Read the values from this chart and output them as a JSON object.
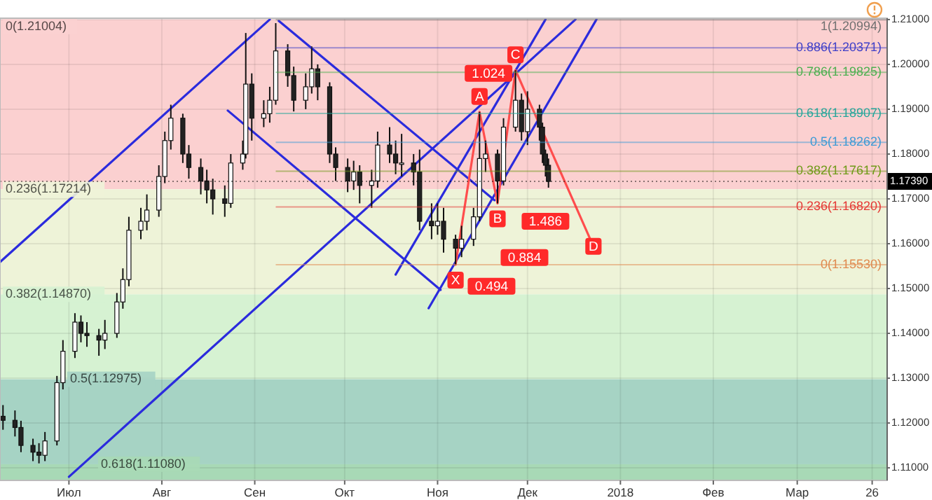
{
  "chart_data": {
    "type": "candlestick",
    "x": [
      "2017-06-09",
      "2017-06-13",
      "2017-06-15",
      "2017-06-19",
      "2017-06-21",
      "2017-06-23",
      "2017-06-27",
      "2017-06-29",
      "2017-07-03",
      "2017-07-05",
      "2017-07-07",
      "2017-07-11",
      "2017-07-13",
      "2017-07-17",
      "2017-07-19",
      "2017-07-21",
      "2017-07-25",
      "2017-07-27",
      "2017-07-31",
      "2017-08-02",
      "2017-08-04",
      "2017-08-08",
      "2017-08-10",
      "2017-08-14",
      "2017-08-16",
      "2017-08-18",
      "2017-08-22",
      "2017-08-24",
      "2017-08-28",
      "2017-08-29",
      "2017-08-31",
      "2017-09-04",
      "2017-09-06",
      "2017-09-08",
      "2017-09-12",
      "2017-09-14",
      "2017-09-18",
      "2017-09-20",
      "2017-09-22",
      "2017-09-26",
      "2017-09-28",
      "2017-10-02",
      "2017-10-04",
      "2017-10-06",
      "2017-10-10",
      "2017-10-12",
      "2017-10-16",
      "2017-10-18",
      "2017-10-20",
      "2017-10-24",
      "2017-10-26",
      "2017-10-30",
      "2017-11-01",
      "2017-11-03",
      "2017-11-07",
      "2017-11-09",
      "2017-11-13",
      "2017-11-15",
      "2017-11-17",
      "2017-11-21",
      "2017-11-23",
      "2017-11-27",
      "2017-11-29",
      "2017-12-01",
      "2017-12-05",
      "2017-12-06",
      "2017-12-07",
      "2017-12-08"
    ],
    "ohlc": [
      [
        1.1215,
        1.124,
        1.1185,
        1.1206
      ],
      [
        1.1206,
        1.1228,
        1.117,
        1.119
      ],
      [
        1.119,
        1.1205,
        1.1135,
        1.115
      ],
      [
        1.115,
        1.1165,
        1.1115,
        1.1135
      ],
      [
        1.1135,
        1.1155,
        1.111,
        1.1128
      ],
      [
        1.1128,
        1.118,
        1.1115,
        1.116
      ],
      [
        1.116,
        1.1305,
        1.115,
        1.129
      ],
      [
        1.129,
        1.1385,
        1.1275,
        1.136
      ],
      [
        1.136,
        1.1445,
        1.1345,
        1.1425
      ],
      [
        1.1425,
        1.144,
        1.138,
        1.14
      ],
      [
        1.14,
        1.1425,
        1.137,
        1.1395
      ],
      [
        1.1395,
        1.141,
        1.135,
        1.1385
      ],
      [
        1.1385,
        1.143,
        1.1365,
        1.14
      ],
      [
        1.14,
        1.149,
        1.139,
        1.147
      ],
      [
        1.147,
        1.1545,
        1.1455,
        1.152
      ],
      [
        1.152,
        1.166,
        1.1505,
        1.163
      ],
      [
        1.163,
        1.168,
        1.161,
        1.165
      ],
      [
        1.165,
        1.171,
        1.163,
        1.1675
      ],
      [
        1.1675,
        1.1775,
        1.166,
        1.175
      ],
      [
        1.175,
        1.185,
        1.1735,
        1.183
      ],
      [
        1.183,
        1.191,
        1.181,
        1.188
      ],
      [
        1.188,
        1.189,
        1.178,
        1.18
      ],
      [
        1.18,
        1.182,
        1.1745,
        1.177
      ],
      [
        1.177,
        1.179,
        1.171,
        1.174
      ],
      [
        1.174,
        1.1765,
        1.169,
        1.172
      ],
      [
        1.172,
        1.1745,
        1.1665,
        1.17
      ],
      [
        1.17,
        1.173,
        1.166,
        1.169
      ],
      [
        1.169,
        1.18,
        1.168,
        1.178
      ],
      [
        1.178,
        1.183,
        1.1765,
        1.18
      ],
      [
        1.18,
        1.207,
        1.179,
        1.1956
      ],
      [
        1.1956,
        1.198,
        1.183,
        1.188
      ],
      [
        1.188,
        1.192,
        1.186,
        1.189
      ],
      [
        1.189,
        1.195,
        1.187,
        1.192
      ],
      [
        1.192,
        1.2092,
        1.191,
        1.203
      ],
      [
        1.203,
        1.2045,
        1.195,
        1.1975
      ],
      [
        1.1975,
        1.1995,
        1.1895,
        1.192
      ],
      [
        1.192,
        1.198,
        1.19,
        1.195
      ],
      [
        1.195,
        1.204,
        1.1935,
        1.199
      ],
      [
        1.199,
        1.2,
        1.192,
        1.195
      ],
      [
        1.195,
        1.196,
        1.178,
        1.18
      ],
      [
        1.18,
        1.1815,
        1.174,
        1.177
      ],
      [
        1.177,
        1.179,
        1.1715,
        1.174
      ],
      [
        1.174,
        1.1785,
        1.172,
        1.176
      ],
      [
        1.176,
        1.1775,
        1.169,
        1.173
      ],
      [
        1.173,
        1.1765,
        1.168,
        1.174
      ],
      [
        1.174,
        1.185,
        1.1725,
        1.182
      ],
      [
        1.182,
        1.186,
        1.178,
        1.18
      ],
      [
        1.18,
        1.183,
        1.1755,
        1.178
      ],
      [
        1.178,
        1.1845,
        1.175,
        1.178
      ],
      [
        1.178,
        1.18,
        1.173,
        1.176
      ],
      [
        1.176,
        1.181,
        1.163,
        1.165
      ],
      [
        1.165,
        1.169,
        1.161,
        1.164
      ],
      [
        1.164,
        1.169,
        1.162,
        1.165
      ],
      [
        1.165,
        1.168,
        1.158,
        1.161
      ],
      [
        1.161,
        1.162,
        1.1553,
        1.159
      ],
      [
        1.159,
        1.164,
        1.157,
        1.161
      ],
      [
        1.161,
        1.168,
        1.1595,
        1.166
      ],
      [
        1.166,
        1.1894,
        1.165,
        1.179
      ],
      [
        1.179,
        1.183,
        1.176,
        1.18
      ],
      [
        1.18,
        1.181,
        1.169,
        1.174
      ],
      [
        1.174,
        1.188,
        1.173,
        1.186
      ],
      [
        1.186,
        1.1987,
        1.185,
        1.192
      ],
      [
        1.192,
        1.1935,
        1.183,
        1.185
      ],
      [
        1.185,
        1.194,
        1.182,
        1.19
      ],
      [
        1.19,
        1.191,
        1.183,
        1.186
      ],
      [
        1.186,
        1.187,
        1.178,
        1.18
      ],
      [
        1.18,
        1.181,
        1.175,
        1.1775
      ],
      [
        1.1775,
        1.179,
        1.1725,
        1.1739
      ]
    ],
    "series": [
      {
        "type": "line",
        "color": "#2b2bdd",
        "x": [
          "2017-06-08",
          "2017-09-06"
        ],
        "values": [
          1.1559,
          1.21
        ]
      },
      {
        "type": "line",
        "color": "#2b2bdd",
        "x": [
          "2017-07-01",
          "2017-12-17"
        ],
        "values": [
          1.108,
          1.21
        ]
      },
      {
        "type": "line",
        "color": "#2b2bdd",
        "x": [
          "2017-10-18",
          "2017-12-07"
        ],
        "values": [
          1.1531,
          1.21
        ]
      },
      {
        "type": "line",
        "color": "#2b2bdd",
        "x": [
          "2017-10-29",
          "2017-12-24"
        ],
        "values": [
          1.1456,
          1.21
        ]
      },
      {
        "type": "line",
        "color": "#2b2bdd",
        "x": [
          "2017-09-09",
          "2017-11-20"
        ],
        "values": [
          1.2097,
          1.1697
        ]
      },
      {
        "type": "line",
        "color": "#2b2bdd",
        "x": [
          "2017-08-23",
          "2017-11-02"
        ],
        "values": [
          1.1897,
          1.1497
        ]
      },
      {
        "type": "line",
        "color": "#ff4d4d",
        "marker": "none",
        "x": [
          "2017-11-07",
          "2017-11-15",
          "2017-11-21",
          "2017-11-27",
          "2017-12-23"
        ],
        "values": [
          1.1553,
          1.1894,
          1.169,
          1.1987,
          1.1594
        ]
      }
    ],
    "xlim": [
      "2017-06-08",
      "2018-03-31"
    ],
    "xticks": [
      {
        "value": "2017-07-01",
        "label": "Июл"
      },
      {
        "value": "2017-08-01",
        "label": "Авг"
      },
      {
        "value": "2017-09-01",
        "label": "Сен"
      },
      {
        "value": "2017-10-01",
        "label": "Окт"
      },
      {
        "value": "2017-11-01",
        "label": "Ноя"
      },
      {
        "value": "2017-12-01",
        "label": "Дек"
      },
      {
        "value": "2018-01-01",
        "label": "2018"
      },
      {
        "value": "2018-02-01",
        "label": "Фев"
      },
      {
        "value": "2018-03-01",
        "label": "Мар"
      },
      {
        "value": "2018-03-26",
        "label": "26"
      }
    ],
    "ylim": [
      1.1072,
      1.2103
    ],
    "yticks": [
      {
        "value": 1.11,
        "label": "1.11000"
      },
      {
        "value": 1.12,
        "label": "1.12000"
      },
      {
        "value": 1.13,
        "label": "1.13000"
      },
      {
        "value": 1.14,
        "label": "1.14000"
      },
      {
        "value": 1.15,
        "label": "1.15000"
      },
      {
        "value": 1.16,
        "label": "1.16000"
      },
      {
        "value": 1.17,
        "label": "1.17000"
      },
      {
        "value": 1.18,
        "label": "1.18000"
      },
      {
        "value": 1.19,
        "label": "1.19000"
      },
      {
        "value": 1.2,
        "label": "1.20000"
      },
      {
        "value": 1.21,
        "label": "1.21000"
      }
    ],
    "grid": true,
    "bands": [
      {
        "axis": "y",
        "from": 1.17214,
        "to": 1.21004,
        "label": "0(1.21004)",
        "color": "#fbd0d0"
      },
      {
        "axis": "y",
        "from": 1.1487,
        "to": 1.17214,
        "label": "0.236(1.17214)",
        "color": "#eef3d8"
      },
      {
        "axis": "y",
        "from": 1.12975,
        "to": 1.1487,
        "label": "0.382(1.14870)",
        "color": "#d6f2d2"
      },
      {
        "axis": "y",
        "from": 1.1108,
        "to": 1.12975,
        "label": "0.5(1.12975)",
        "color": "#a6d3c4"
      },
      {
        "axis": "y",
        "from": 1.1072,
        "to": 1.1108,
        "label": "0.618(1.11080)",
        "color": "#a8d9b6"
      }
    ],
    "ref_lines": [
      {
        "axis": "y",
        "value": 1.20994,
        "label": "1(1.20994)",
        "color": "#707070"
      },
      {
        "axis": "y",
        "value": 1.20371,
        "label": "0.886(1.20371)",
        "color": "#4040c8"
      },
      {
        "axis": "y",
        "value": 1.19825,
        "label": "0.786(1.19825)",
        "color": "#4caf50"
      },
      {
        "axis": "y",
        "value": 1.18907,
        "label": "0.618(1.18907)",
        "color": "#26a69a"
      },
      {
        "axis": "y",
        "value": 1.18262,
        "label": "0.5(1.18262)",
        "color": "#3d9bd6"
      },
      {
        "axis": "y",
        "value": 1.17617,
        "label": "0.382(1.17617)",
        "color": "#6f9a18"
      },
      {
        "axis": "y",
        "value": 1.1682,
        "label": "0.236(1.16820)",
        "color": "#e53935"
      },
      {
        "axis": "y",
        "value": 1.1553,
        "label": "0(1.15530)",
        "color": "#e08a50"
      },
      {
        "axis": "y",
        "value": 1.1739,
        "label": "1.17390",
        "color": "#000000",
        "line_style": "dotted"
      }
    ],
    "annotations": [
      {
        "text": "X",
        "x": "2017-11-07",
        "y": 1.1553
      },
      {
        "text": "A",
        "x": "2017-11-15",
        "y": 1.1894
      },
      {
        "text": "B",
        "x": "2017-11-21",
        "y": 1.169
      },
      {
        "text": "C",
        "x": "2017-11-27",
        "y": 1.1987
      },
      {
        "text": "D",
        "x": "2017-12-23",
        "y": 1.1594
      },
      {
        "text": "0.494",
        "x": "2017-11-19",
        "y": 1.1505
      },
      {
        "text": "1.024",
        "x": "2017-11-18",
        "y": 1.198
      },
      {
        "text": "1.486",
        "x": "2017-12-07",
        "y": 1.165
      },
      {
        "text": "0.884",
        "x": "2017-11-30",
        "y": 1.1569
      }
    ]
  }
}
